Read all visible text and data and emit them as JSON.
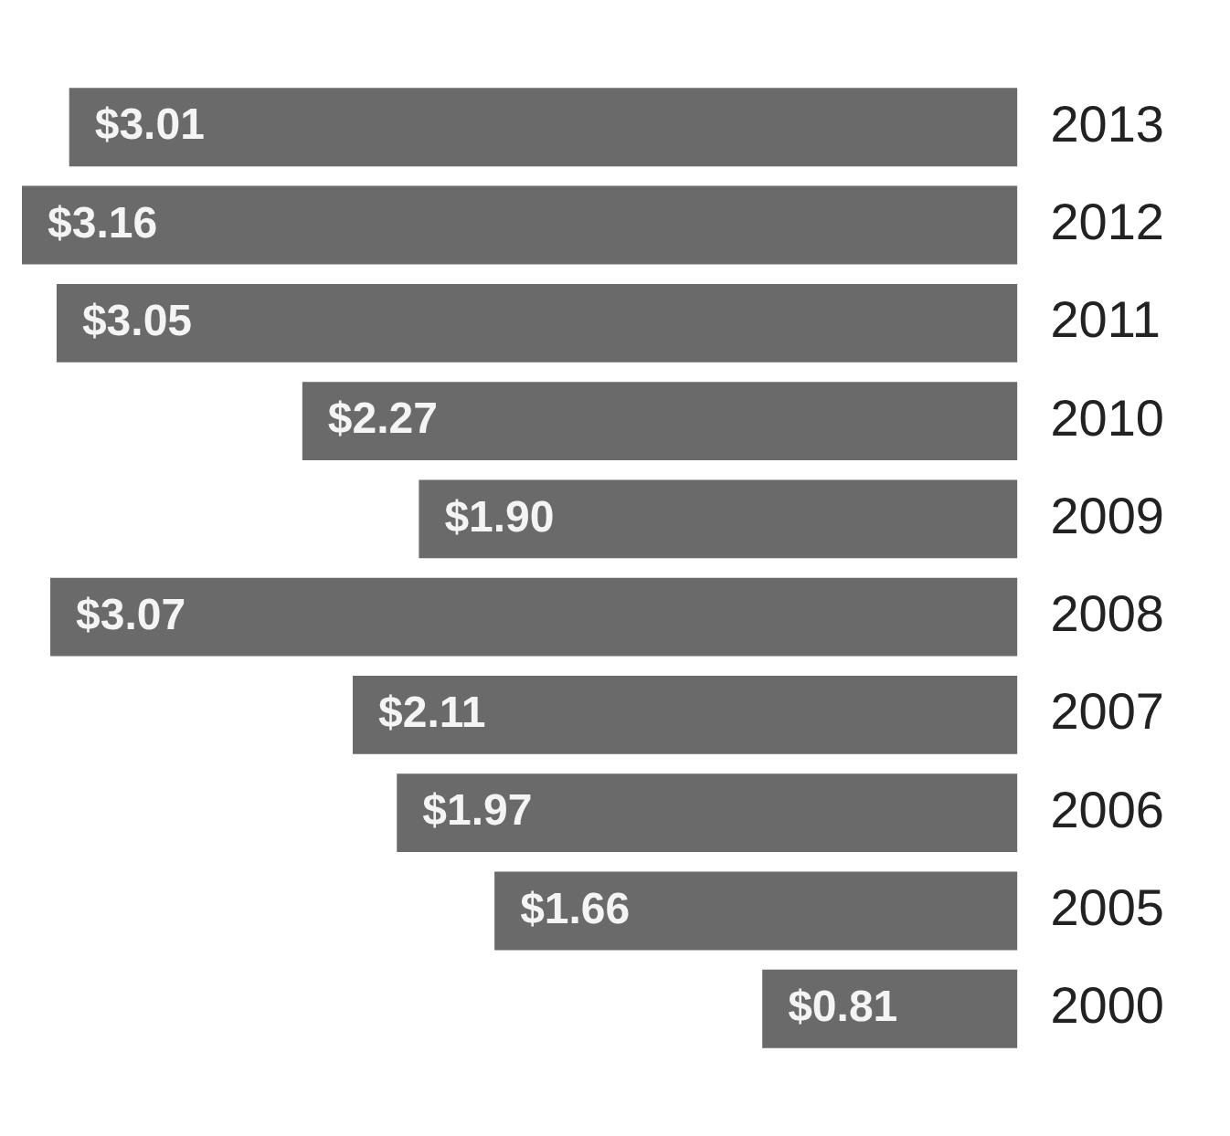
{
  "chart_data": {
    "type": "bar",
    "orientation": "horizontal",
    "categories": [
      "2013",
      "2012",
      "2011",
      "2010",
      "2009",
      "2008",
      "2007",
      "2006",
      "2005",
      "2000"
    ],
    "values": [
      3.01,
      3.16,
      3.05,
      2.27,
      1.9,
      3.07,
      2.11,
      1.97,
      1.66,
      0.81
    ],
    "value_labels": [
      "$3.01",
      "$3.16",
      "$3.05",
      "$2.27",
      "$1.90",
      "$3.07",
      "$2.11",
      "$1.97",
      "$1.66",
      "$0.81"
    ],
    "color": "#6a6a6a"
  }
}
